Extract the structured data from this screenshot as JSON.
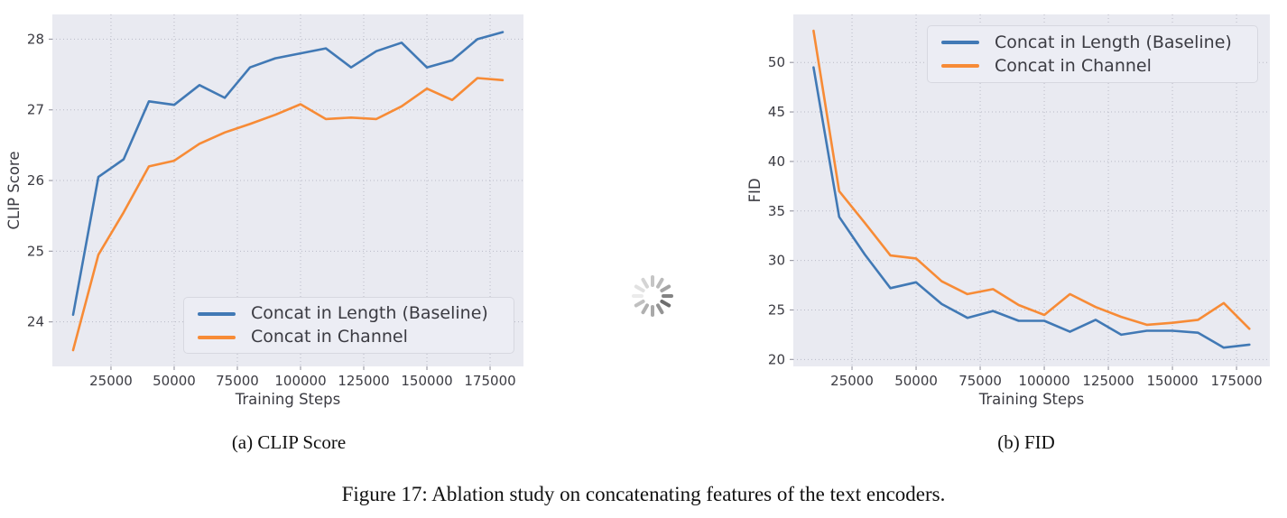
{
  "figure": {
    "subcaption_a": "(a) CLIP Score",
    "subcaption_b": "(b) FID",
    "caption": "Figure 17: Ablation study on concatenating features of the text encoders."
  },
  "colors": {
    "baseline_line": "#4179b5",
    "channel_line": "#f78b36",
    "plot_bg": "#e9eaf1",
    "grid": "#b9bac6",
    "tick_mark": "#9a9aa5",
    "text": "#3b3b42"
  },
  "spinner": {
    "icon": "loading-spinner"
  },
  "chart_data": [
    {
      "type": "line",
      "id": "clip_score",
      "title": "",
      "xlabel": "Training Steps",
      "ylabel": "CLIP Score",
      "grid": true,
      "legend_position": "lower right",
      "xlim": [
        1800,
        188200
      ],
      "ylim": [
        23.37,
        28.35
      ],
      "x_ticks": [
        25000,
        50000,
        75000,
        100000,
        125000,
        150000,
        175000
      ],
      "x_tick_labels": [
        "25000",
        "50000",
        "75000",
        "100000",
        "125000",
        "150000",
        "175000"
      ],
      "y_ticks": [
        24,
        25,
        26,
        27,
        28
      ],
      "y_tick_labels": [
        "24",
        "25",
        "26",
        "27",
        "28"
      ],
      "x": [
        10000,
        20000,
        30000,
        40000,
        50000,
        60000,
        70000,
        80000,
        90000,
        100000,
        110000,
        120000,
        130000,
        140000,
        150000,
        160000,
        170000,
        180000
      ],
      "series": [
        {
          "name": "Concat in Length (Baseline)",
          "color": "#4179b5",
          "values": [
            24.1,
            26.05,
            26.3,
            27.12,
            27.07,
            27.35,
            27.17,
            27.6,
            27.73,
            27.8,
            27.87,
            27.6,
            27.83,
            27.95,
            27.6,
            27.7,
            28.0,
            28.1
          ]
        },
        {
          "name": "Concat in Channel",
          "color": "#f78b36",
          "values": [
            23.6,
            24.95,
            25.55,
            26.2,
            26.28,
            26.52,
            26.68,
            26.8,
            26.93,
            27.08,
            26.87,
            26.89,
            26.87,
            27.05,
            27.3,
            27.14,
            27.45,
            27.42
          ]
        }
      ]
    },
    {
      "type": "line",
      "id": "fid",
      "title": "",
      "xlabel": "Training Steps",
      "ylabel": "FID",
      "grid": true,
      "legend_position": "upper right",
      "xlim": [
        2100,
        188000
      ],
      "ylim": [
        19.3,
        54.85
      ],
      "x_ticks": [
        25000,
        50000,
        75000,
        100000,
        125000,
        150000,
        175000
      ],
      "x_tick_labels": [
        "25000",
        "50000",
        "75000",
        "100000",
        "125000",
        "150000",
        "175000"
      ],
      "y_ticks": [
        20,
        25,
        30,
        35,
        40,
        45,
        50
      ],
      "y_tick_labels": [
        "20",
        "25",
        "30",
        "35",
        "40",
        "45",
        "50"
      ],
      "x": [
        10000,
        20000,
        30000,
        40000,
        50000,
        60000,
        70000,
        80000,
        90000,
        100000,
        110000,
        120000,
        130000,
        140000,
        150000,
        160000,
        170000,
        180000
      ],
      "series": [
        {
          "name": "Concat in Length (Baseline)",
          "color": "#4179b5",
          "values": [
            49.5,
            34.4,
            30.6,
            27.2,
            27.8,
            25.6,
            24.2,
            24.9,
            23.9,
            23.9,
            22.8,
            24.0,
            22.5,
            22.9,
            22.9,
            22.7,
            21.2,
            21.5
          ]
        },
        {
          "name": "Concat in Channel",
          "color": "#f78b36",
          "values": [
            53.2,
            37.0,
            33.8,
            30.5,
            30.2,
            27.9,
            26.6,
            27.1,
            25.5,
            24.5,
            26.6,
            25.3,
            24.3,
            23.5,
            23.7,
            24.0,
            25.7,
            23.1
          ]
        }
      ]
    }
  ]
}
